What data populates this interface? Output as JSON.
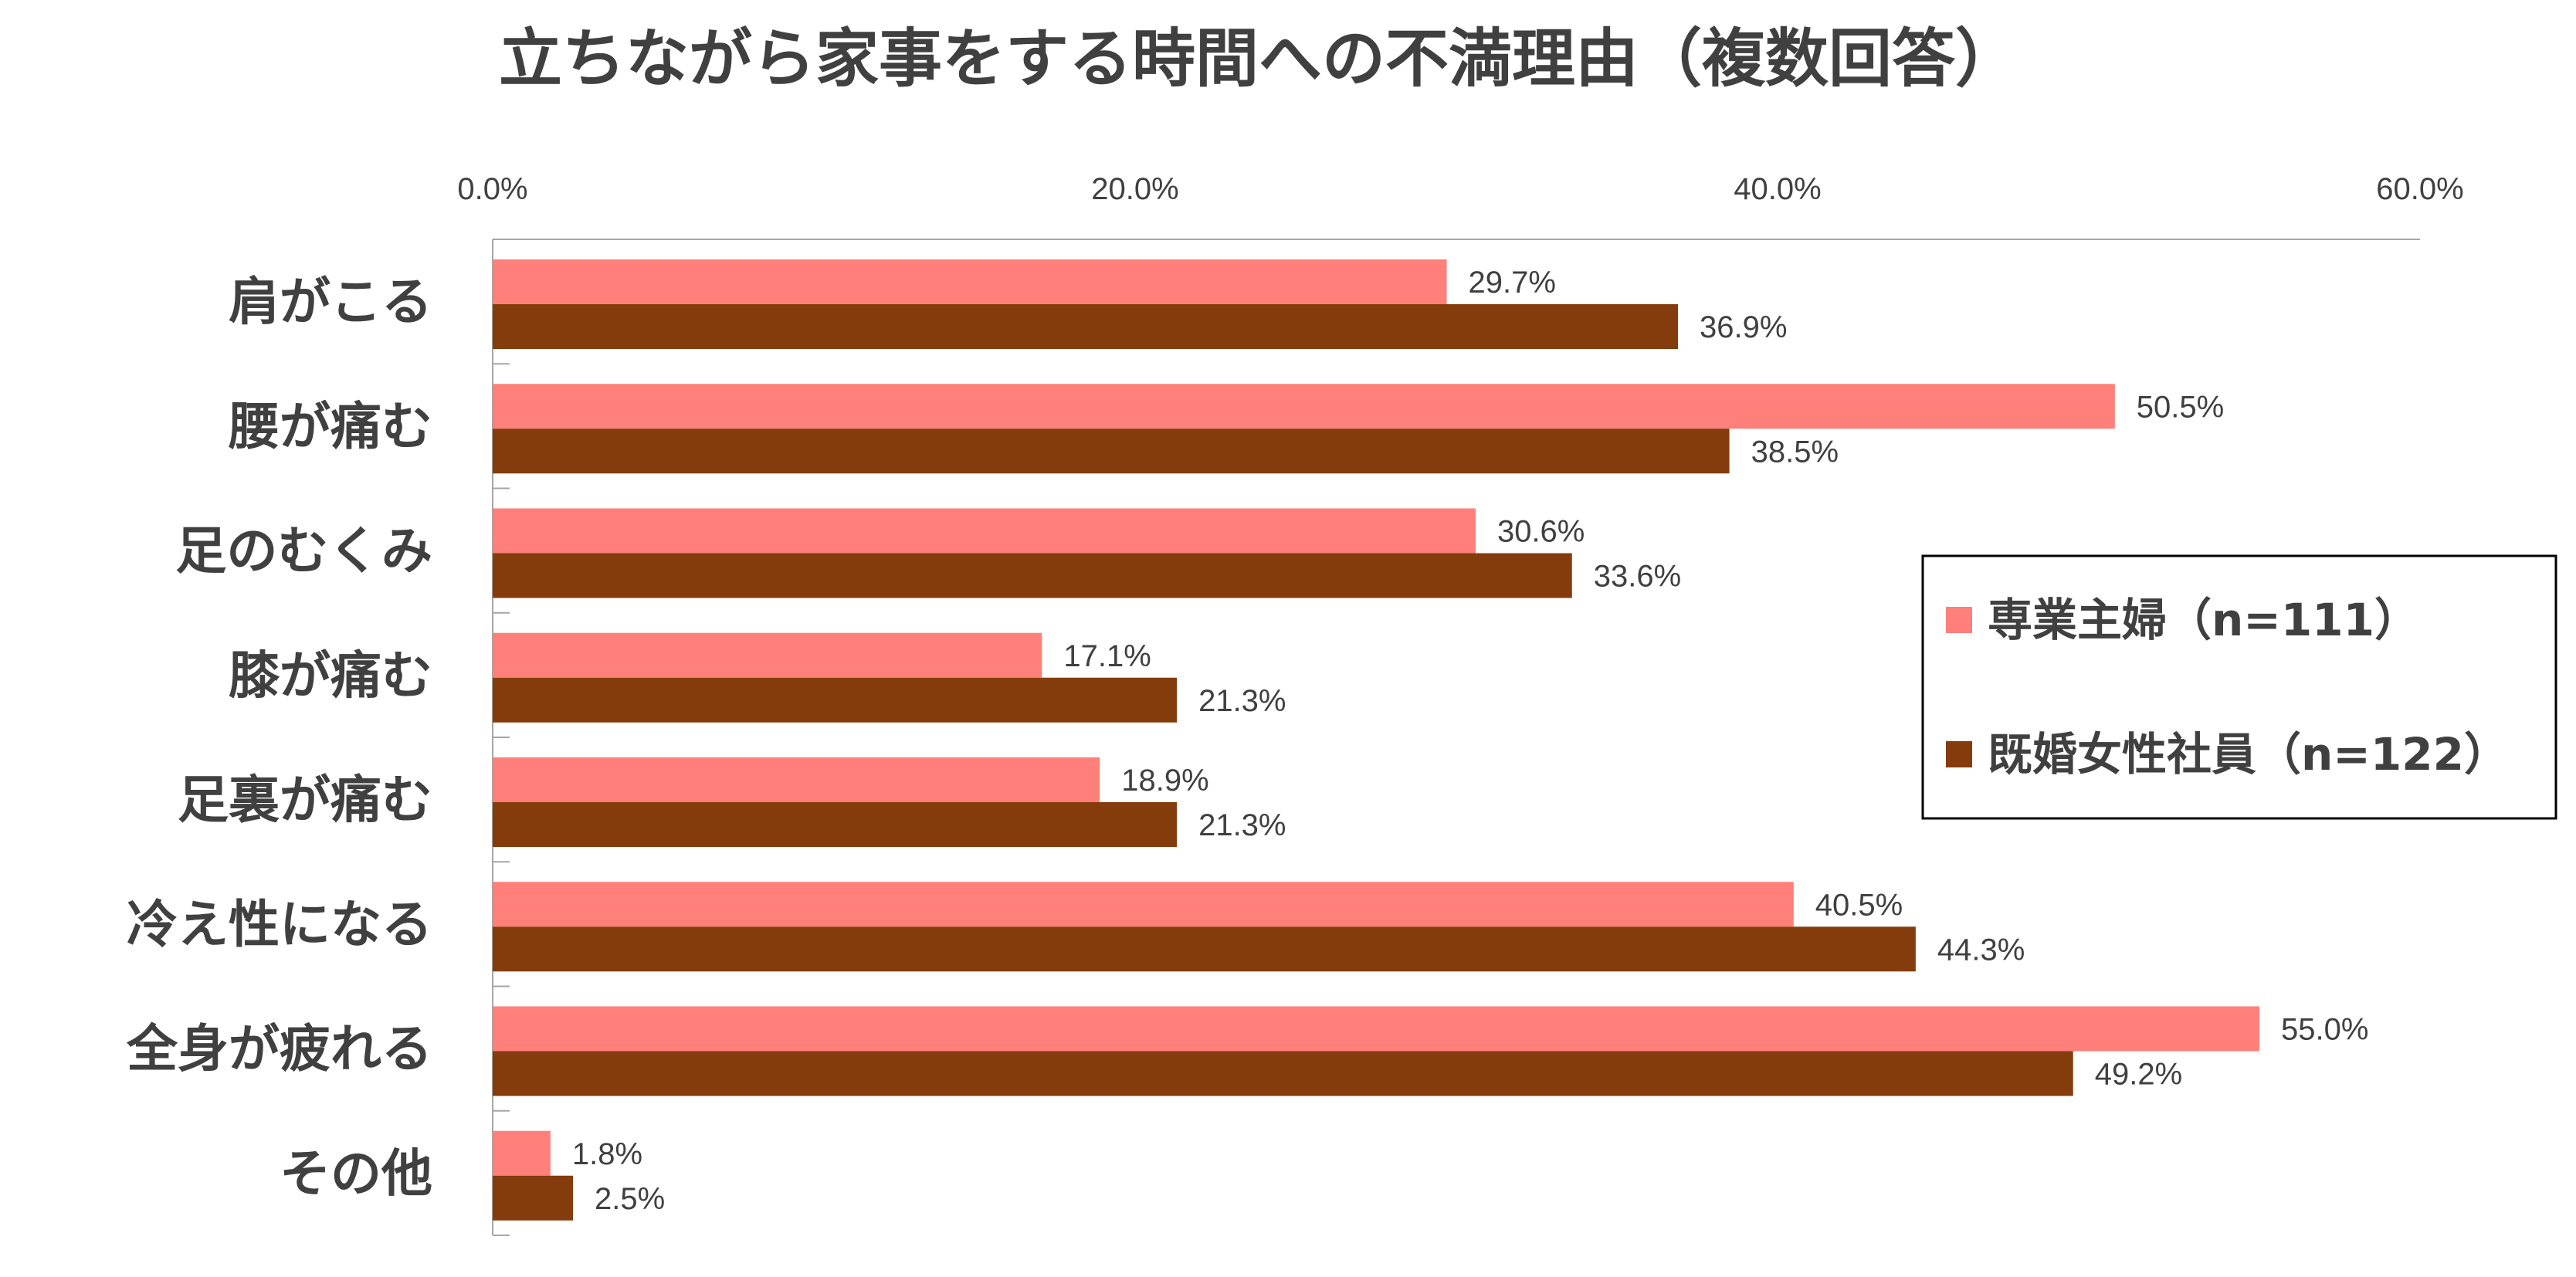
{
  "chart_data": {
    "type": "bar",
    "orientation": "horizontal",
    "title": "立ちながら家事をする時間への不満理由（複数回答）",
    "categories": [
      "肩がこる",
      "腰が痛む",
      "足のむくみ",
      "膝が痛む",
      "足裏が痛む",
      "冷え性になる",
      "全身が疲れる",
      "その他"
    ],
    "series": [
      {
        "name": "専業主婦（n=111）",
        "color": "#ff7f7a",
        "values": [
          29.7,
          50.5,
          30.6,
          17.1,
          18.9,
          40.5,
          55.0,
          1.8
        ],
        "labels": [
          "29.7%",
          "50.5%",
          "30.6%",
          "17.1%",
          "18.9%",
          "40.5%",
          "55.0%",
          "1.8%"
        ]
      },
      {
        "name": "既婚女性社員（n=122）",
        "color": "#843c0c",
        "values": [
          36.9,
          38.5,
          33.6,
          21.3,
          21.3,
          44.3,
          49.2,
          2.5
        ],
        "labels": [
          "36.9%",
          "38.5%",
          "33.6%",
          "21.3%",
          "21.3%",
          "44.3%",
          "49.2%",
          "2.5%"
        ]
      }
    ],
    "xlim": [
      0,
      60
    ],
    "xticks": [
      0,
      20,
      40,
      60
    ],
    "xtick_labels": [
      "0.0%",
      "20.0%",
      "40.0%",
      "60.0%"
    ],
    "xaxis_position": "top",
    "legend_position": "right",
    "grid": false
  }
}
